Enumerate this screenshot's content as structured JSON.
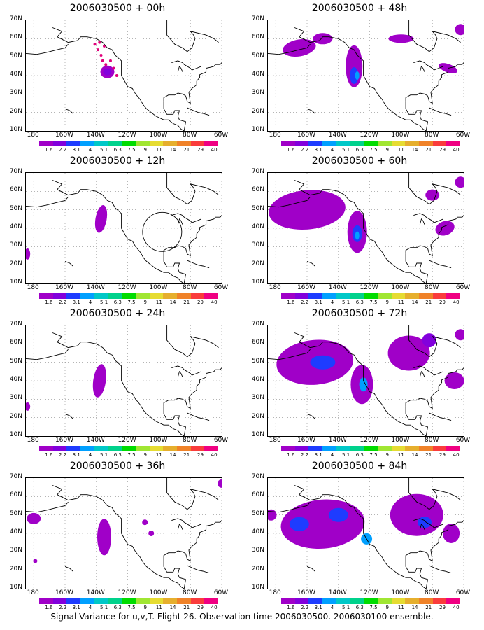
{
  "panels": [
    {
      "title": "2006030500 + 00h"
    },
    {
      "title": "2006030500 + 48h"
    },
    {
      "title": "2006030500 + 12h"
    },
    {
      "title": "2006030500 + 60h"
    },
    {
      "title": "2006030500 + 24h"
    },
    {
      "title": "2006030500 + 72h"
    },
    {
      "title": "2006030500 + 36h"
    },
    {
      "title": "2006030500 + 84h"
    }
  ],
  "axes": {
    "lat_labels": [
      "70N",
      "60N",
      "50N",
      "40N",
      "30N",
      "20N",
      "10N"
    ],
    "lon_labels": [
      "180",
      "160W",
      "140W",
      "120W",
      "100W",
      "80W",
      "60W"
    ]
  },
  "colorbar": {
    "labels": [
      "1.6",
      "2.2",
      "3.1",
      "4",
      "5.1",
      "6.3",
      "7.5",
      "9",
      "11",
      "14",
      "21",
      "29",
      "40"
    ],
    "colors": [
      "#a000c8",
      "#8200dc",
      "#1e3cff",
      "#00a0ff",
      "#00c8c8",
      "#00d28c",
      "#00dc00",
      "#a0e632",
      "#e6dc32",
      "#e6af2d",
      "#f08228",
      "#fa3c3c",
      "#f00082"
    ]
  },
  "caption": "Signal Variance for u,v,T. Flight 26. Observation time 2006030500. 2006030100 ensemble."
}
